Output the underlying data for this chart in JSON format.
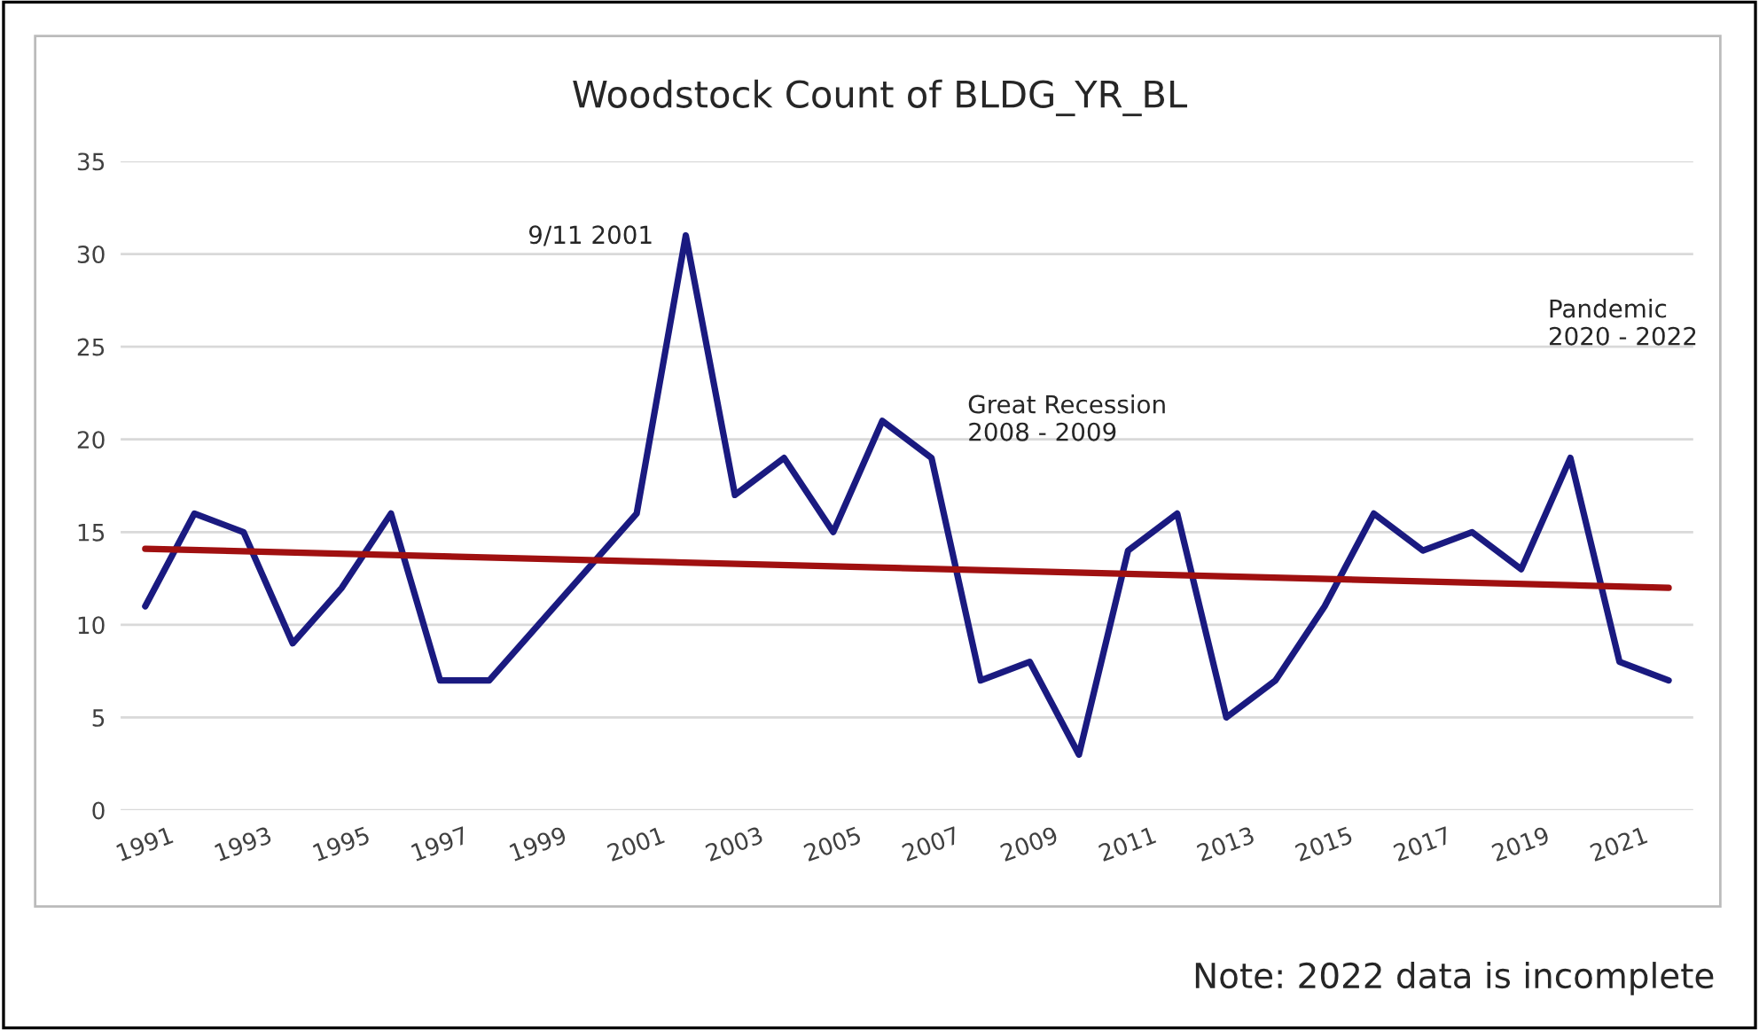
{
  "chart_data": {
    "type": "line",
    "title": "Woodstock Count of BLDG_YR_BL",
    "x": [
      1991,
      1992,
      1993,
      1994,
      1995,
      1996,
      1997,
      1998,
      1999,
      2000,
      2001,
      2002,
      2003,
      2004,
      2005,
      2006,
      2007,
      2008,
      2009,
      2010,
      2011,
      2012,
      2013,
      2014,
      2015,
      2016,
      2017,
      2018,
      2019,
      2020,
      2021,
      2022
    ],
    "series": [
      {
        "color": "#1a1a80",
        "values": [
          11,
          16,
          15,
          9,
          12,
          16,
          7,
          7,
          10,
          13,
          16,
          31,
          17,
          19,
          15,
          21,
          19,
          7,
          8,
          3,
          14,
          16,
          5,
          7,
          11,
          16,
          14,
          15,
          13,
          19,
          8,
          7
        ]
      },
      {
        "type": "line",
        "color": "#a01010",
        "x": [
          1991,
          2022
        ],
        "values": [
          14.1,
          12.0
        ]
      }
    ],
    "xlim": [
      1990.5,
      2022.5
    ],
    "xticks": [
      1991,
      1993,
      1995,
      1997,
      1999,
      2001,
      2003,
      2005,
      2007,
      2009,
      2011,
      2013,
      2015,
      2017,
      2019,
      2021
    ],
    "ylim": [
      0,
      35
    ],
    "yticks": [
      0,
      5,
      10,
      15,
      20,
      25,
      30,
      35
    ],
    "grid": "y",
    "legend": false,
    "marker": "none",
    "line_style": "solid",
    "annotations": [
      "9/11 2001",
      "Great Recession\n2008 - 2009",
      "Pandemic\n2020 - 2022",
      "Note: 2022 data is incomplete"
    ]
  }
}
